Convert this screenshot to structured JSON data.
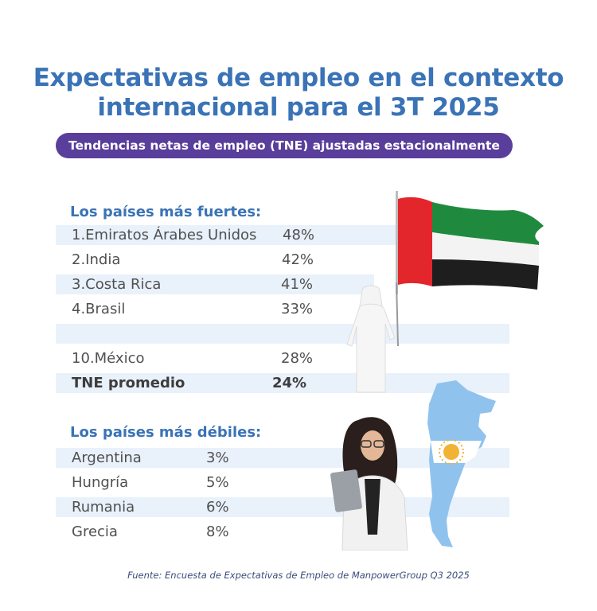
{
  "title_line1": "Expectativas de empleo en el contexto",
  "title_line2": "internacional para el 3T 2025",
  "subtitle": "Tendencias netas de empleo (TNE) ajustadas estacionalmente",
  "strong": {
    "heading": "Los países más fuertes:",
    "rows": [
      {
        "name": "1.Emiratos Árabes Unidos",
        "value": "48%"
      },
      {
        "name": "2.India",
        "value": "42%"
      },
      {
        "name": "3.Costa Rica",
        "value": "41%"
      },
      {
        "name": "4.Brasil",
        "value": "33%"
      },
      {
        "name": "",
        "value": ""
      },
      {
        "name": "10.México",
        "value": "28%"
      }
    ],
    "average": {
      "name": "TNE promedio",
      "value": "24%"
    }
  },
  "weak": {
    "heading": "Los países más débiles:",
    "rows": [
      {
        "name": "Argentina",
        "value": "3%"
      },
      {
        "name": "Hungría",
        "value": "5%"
      },
      {
        "name": "Rumania",
        "value": "6%"
      },
      {
        "name": "Grecia",
        "value": "8%"
      }
    ]
  },
  "footer": "Fuente: Encuesta de Expectativas de Empleo de ManpowerGroup Q3 2025",
  "colors": {
    "title": "#3a73b6",
    "pill": "#5a3e9b",
    "band": "#e9f1fb",
    "uae_red": "#e2262c",
    "uae_green": "#1f8a3e",
    "argentina_blue": "#8fc3ee"
  }
}
